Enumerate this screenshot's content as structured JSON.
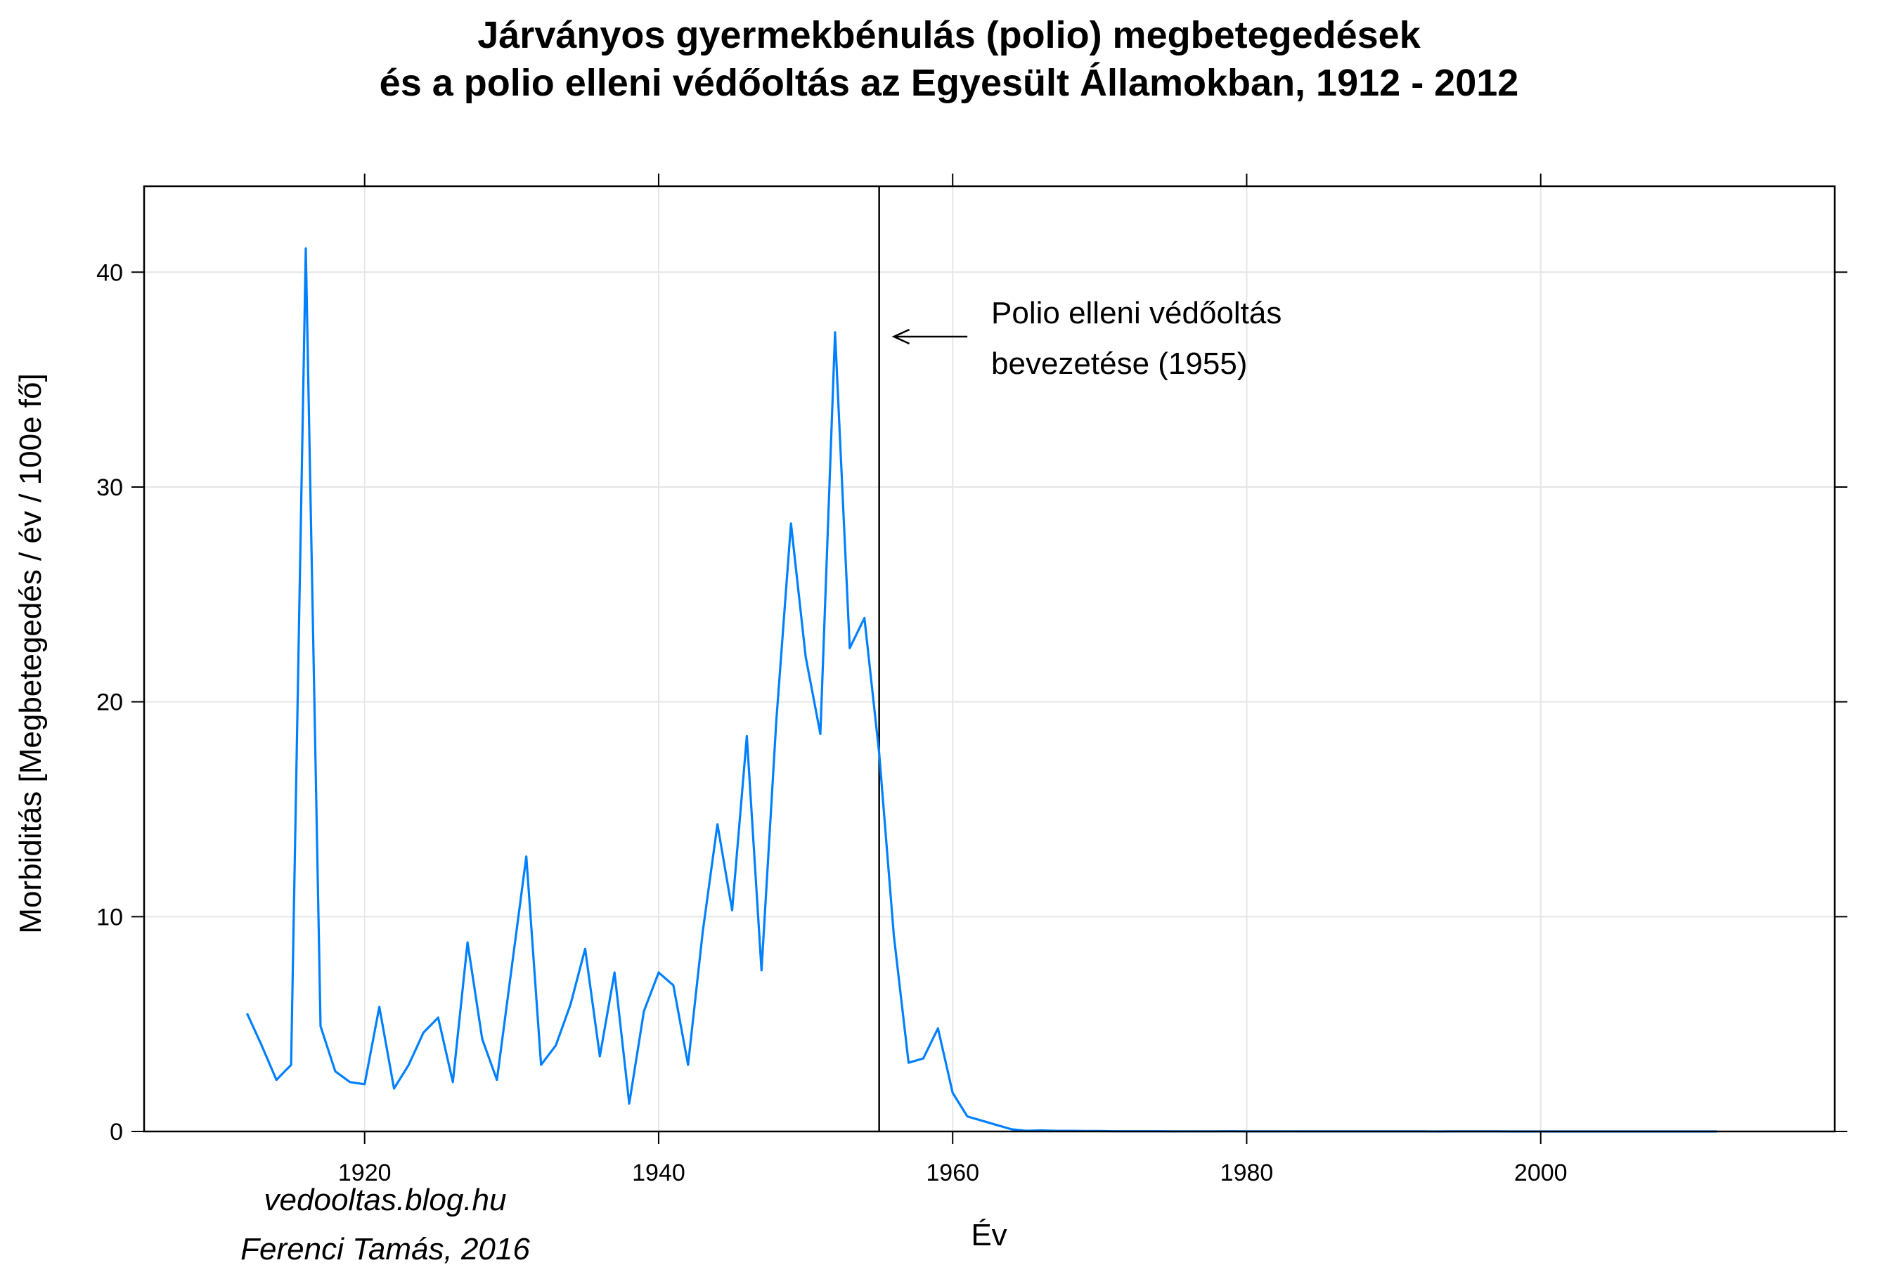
{
  "chart_data": {
    "type": "line",
    "title": "Járványos gyermekbénulás (polio) megbetegedések",
    "subtitle": "és a polio elleni védőoltás az Egyesült Államokban, 1912 - 2012",
    "xlabel": "Év",
    "ylabel": "Morbiditás [Megbetegedés / év / 100e fő]",
    "xlim": [
      1905,
      2020
    ],
    "ylim": [
      0,
      44
    ],
    "x_ticks": [
      1920,
      1940,
      1960,
      1980,
      2000
    ],
    "y_ticks": [
      0,
      10,
      20,
      30,
      40
    ],
    "grid": true,
    "line_color": "#0080ff",
    "series": [
      {
        "x": [
          1912,
          1913,
          1914,
          1915,
          1916,
          1917,
          1918,
          1919,
          1920,
          1921,
          1922,
          1923,
          1924,
          1925,
          1926,
          1927,
          1928,
          1929,
          1930,
          1931,
          1932,
          1933,
          1934,
          1935,
          1936,
          1937,
          1938,
          1939,
          1940,
          1941,
          1942,
          1943,
          1944,
          1945,
          1946,
          1947,
          1948,
          1949,
          1950,
          1951,
          1952,
          1953,
          1954,
          1955,
          1956,
          1957,
          1958,
          1959,
          1960,
          1961,
          1962,
          1963,
          1964,
          1965,
          1966,
          1967,
          1968,
          1969,
          1970,
          1971,
          1972,
          1973,
          1974,
          1975,
          1976,
          1977,
          1978,
          1979,
          1980,
          1981,
          1982,
          1983,
          1984,
          1985,
          1986,
          1987,
          1988,
          1989,
          1990,
          1991,
          1992,
          1993,
          1994,
          1995,
          1996,
          1997,
          1998,
          1999,
          2000,
          2001,
          2002,
          2003,
          2004,
          2005,
          2006,
          2007,
          2008,
          2009,
          2010,
          2011,
          2012
        ],
        "values": [
          5.5,
          4.0,
          2.4,
          3.1,
          41.1,
          4.9,
          2.8,
          2.3,
          2.2,
          5.8,
          2.0,
          3.1,
          4.6,
          5.3,
          2.3,
          8.8,
          4.3,
          2.4,
          7.6,
          12.8,
          3.1,
          4.0,
          5.9,
          8.5,
          3.5,
          7.4,
          1.3,
          5.6,
          7.4,
          6.8,
          3.1,
          9.3,
          14.3,
          10.3,
          18.4,
          7.5,
          19.1,
          28.3,
          22.1,
          18.5,
          37.2,
          22.5,
          23.9,
          17.6,
          9.1,
          3.2,
          3.4,
          4.8,
          1.8,
          0.7,
          0.5,
          0.3,
          0.1,
          0.03,
          0.05,
          0.03,
          0.03,
          0.02,
          0.02,
          0.01,
          0.01,
          0.01,
          0.01,
          0.004,
          0.005,
          0.007,
          0.005,
          0.01,
          0.004,
          0.003,
          0.003,
          0.006,
          0.004,
          0.004,
          0.004,
          0.002,
          0.004,
          0.002,
          0.002,
          0.002,
          0.002,
          0.001,
          0.002,
          0.002,
          0.002,
          0.002,
          0.001,
          0.001,
          0.0,
          0.0,
          0.0,
          0.0,
          0.0,
          0.0,
          0.0,
          0.0,
          0.0,
          0.0,
          0.0,
          0.0,
          0.0
        ]
      }
    ],
    "vline": {
      "x": 1955
    },
    "annotation": {
      "line1": "Polio elleni védőoltás",
      "line2": "bevezetése (1955)",
      "arrow_to_x": 1956,
      "arrow_from_x": 1961,
      "arrow_y": 37
    }
  },
  "credits": {
    "blog": "vedooltas.blog.hu",
    "author": "Ferenci Tamás, 2016"
  }
}
